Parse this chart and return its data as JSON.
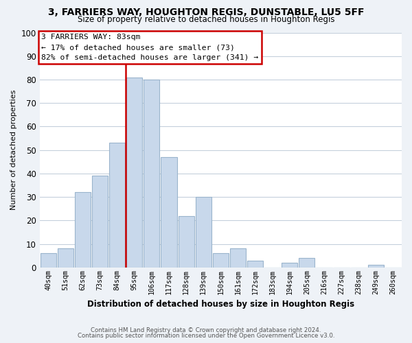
{
  "title": "3, FARRIERS WAY, HOUGHTON REGIS, DUNSTABLE, LU5 5FF",
  "subtitle": "Size of property relative to detached houses in Houghton Regis",
  "xlabel": "Distribution of detached houses by size in Houghton Regis",
  "ylabel": "Number of detached properties",
  "bar_labels": [
    "40sqm",
    "51sqm",
    "62sqm",
    "73sqm",
    "84sqm",
    "95sqm",
    "106sqm",
    "117sqm",
    "128sqm",
    "139sqm",
    "150sqm",
    "161sqm",
    "172sqm",
    "183sqm",
    "194sqm",
    "205sqm",
    "216sqm",
    "227sqm",
    "238sqm",
    "249sqm",
    "260sqm"
  ],
  "bar_values": [
    6,
    8,
    32,
    39,
    53,
    81,
    80,
    47,
    22,
    30,
    6,
    8,
    3,
    0,
    2,
    4,
    0,
    0,
    0,
    1,
    0
  ],
  "bar_color": "#c8d8eb",
  "bar_edge_color": "#9ab4cc",
  "highlight_idx": 4,
  "annotation_title": "3 FARRIERS WAY: 83sqm",
  "annotation_line1": "← 17% of detached houses are smaller (73)",
  "annotation_line2": "82% of semi-detached houses are larger (341) →",
  "annotation_box_color": "#ffffff",
  "annotation_box_edge": "#cc0000",
  "vline_color": "#cc0000",
  "ylim": [
    0,
    100
  ],
  "yticks": [
    0,
    10,
    20,
    30,
    40,
    50,
    60,
    70,
    80,
    90,
    100
  ],
  "footnote1": "Contains HM Land Registry data © Crown copyright and database right 2024.",
  "footnote2": "Contains public sector information licensed under the Open Government Licence v3.0.",
  "bg_color": "#eef2f7",
  "plot_bg_color": "#ffffff",
  "grid_color": "#c5d0dc"
}
